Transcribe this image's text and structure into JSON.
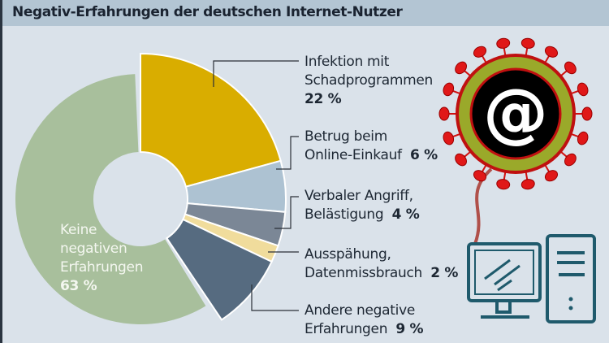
{
  "chart_data": {
    "type": "pie",
    "variant": "donut",
    "title": "Negativ-Erfahrungen der deutschen Internet-Nutzer",
    "unit": "%",
    "slices": [
      {
        "line1": "Infektion mit",
        "line2": "Schadprogrammen",
        "value": 22,
        "value_label": "22 %",
        "color": "#d9ad00",
        "exploded": true
      },
      {
        "line1": "Betrug beim",
        "line2": "Online-Einkauf",
        "value": 6,
        "value_label": "6 %",
        "color": "#adc2d2",
        "exploded": true
      },
      {
        "line1": "Verbaler Angriff,",
        "line2": "Belästigung",
        "value": 4,
        "value_label": "4 %",
        "color": "#7b8796",
        "exploded": true
      },
      {
        "line1": "Ausspähung,",
        "line2": "Datenmissbrauch",
        "value": 2,
        "value_label": "2 %",
        "color": "#f0dc9c",
        "exploded": true
      },
      {
        "line1": "Andere negative",
        "line2": "Erfahrungen",
        "value": 9,
        "value_label": "9 %",
        "color": "#566b80",
        "exploded": true
      },
      {
        "line1": "Keine",
        "line2": "negativen",
        "line3": "Erfahrungen",
        "value": 63,
        "value_label": "63 %",
        "color": "#a8bf9c",
        "exploded": false
      }
    ]
  },
  "illustration": {
    "icon": "virus-at-sign-computer",
    "glyph": "@"
  }
}
